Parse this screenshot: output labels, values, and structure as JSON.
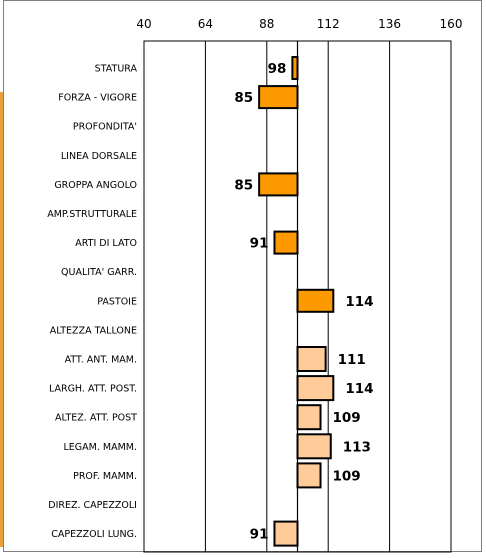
{
  "chart_data": {
    "type": "bar",
    "orientation": "horizontal",
    "baseline": 100,
    "xlim": [
      40,
      160
    ],
    "xticks": [
      40,
      64,
      88,
      112,
      136,
      160
    ],
    "categories": [
      "STATURA",
      "FORZA - VIGORE",
      "PROFONDITA'",
      "LINEA DORSALE",
      "GROPPA ANGOLO",
      "AMP.STRUTTURALE",
      "ARTI DI LATO",
      "QUALITA' GARR.",
      "PASTOIE",
      "ALTEZZA TALLONE",
      "ATT. ANT. MAM.",
      "LARGH. ATT. POST.",
      "ALTEZ. ATT. POST",
      "LEGAM. MAMM.",
      "PROF. MAMM.",
      "DIREZ. CAPEZZOLI",
      "CAPEZZOLI LUNG."
    ],
    "values": [
      98,
      85,
      null,
      null,
      85,
      null,
      91,
      null,
      114,
      null,
      111,
      114,
      109,
      113,
      109,
      null,
      91
    ],
    "value_labels": [
      "98",
      "85",
      "",
      "",
      "85",
      "",
      "91",
      "",
      "114",
      "",
      "111",
      "114",
      "109",
      "113",
      "109",
      "",
      "91"
    ],
    "groups": [
      "body",
      "body",
      "body",
      "body",
      "body",
      "body",
      "body",
      "body",
      "body",
      "body",
      "udder",
      "udder",
      "udder",
      "udder",
      "udder",
      "udder",
      "udder"
    ],
    "colors": {
      "body": "#ff9900",
      "udder": "#ffcc99",
      "stroke": "#000000",
      "grid": "#000000"
    },
    "grid": true,
    "legend": "none"
  }
}
